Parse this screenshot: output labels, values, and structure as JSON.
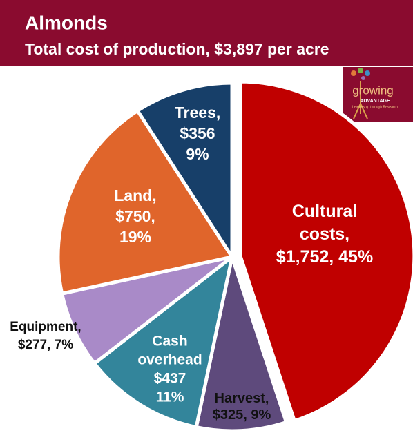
{
  "chart_data": {
    "type": "pie",
    "title": "Almonds",
    "subtitle": "Total cost of production, $3,897 per acre",
    "categories": [
      "Cultural costs",
      "Harvest",
      "Cash overhead",
      "Equipment",
      "Land",
      "Trees"
    ],
    "values": [
      1752,
      325,
      437,
      277,
      750,
      356
    ],
    "value_labels": [
      [
        "Cultural",
        "costs,",
        "$1,752, 45%"
      ],
      [
        "Harvest,",
        "$325, 9%"
      ],
      [
        "Cash",
        "overhead",
        "$437",
        "11%"
      ],
      [
        "Equipment,",
        "$277, 7%"
      ],
      [
        "Land,",
        "$750,",
        "19%"
      ],
      [
        "Trees,",
        "$356",
        "9%"
      ]
    ],
    "colors": [
      "#c00000",
      "#5e4a7c",
      "#33859b",
      "#a98ac8",
      "#e0652b",
      "#173f69"
    ]
  },
  "logo": {
    "name": "growing",
    "tagline": "ADVANTAGE",
    "motto": "Leadership through Research"
  }
}
